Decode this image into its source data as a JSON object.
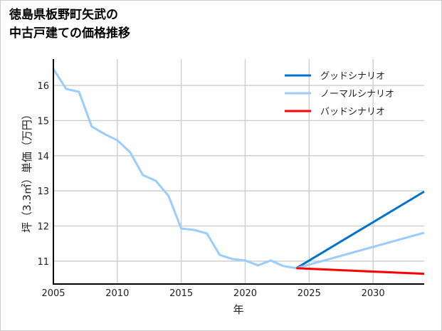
{
  "chart_data": {
    "type": "line",
    "title_lines": [
      "徳島県板野町矢武の",
      "中古戸建ての価格推移"
    ],
    "xlabel": "年",
    "ylabel": "坪（3.3㎡）単価（万円）",
    "xlim": [
      2005,
      2034
    ],
    "ylim": [
      10.35,
      16.75
    ],
    "xticks": [
      2005,
      2010,
      2015,
      2020,
      2025,
      2030
    ],
    "yticks": [
      11,
      12,
      13,
      14,
      15,
      16
    ],
    "grid": true,
    "legend_position": "top-right",
    "historical": {
      "x": [
        2005,
        2006,
        2007,
        2008,
        2009,
        2010,
        2011,
        2012,
        2013,
        2014,
        2015,
        2016,
        2017,
        2018,
        2019,
        2020,
        2021,
        2022,
        2023,
        2024
      ],
      "y": [
        16.47,
        15.9,
        15.82,
        14.83,
        14.62,
        14.44,
        14.1,
        13.45,
        13.29,
        12.86,
        11.93,
        11.89,
        11.79,
        11.18,
        11.06,
        11.02,
        10.88,
        11.02,
        10.86,
        10.8
      ],
      "color": "#99ccff"
    },
    "series": [
      {
        "name": "グッドシナリオ",
        "x": [
          2024,
          2034
        ],
        "y": [
          10.8,
          12.98
        ],
        "color": "#0073cc"
      },
      {
        "name": "ノーマルシナリオ",
        "x": [
          2024,
          2034
        ],
        "y": [
          10.8,
          11.81
        ],
        "color": "#99ccff"
      },
      {
        "name": "バッドシナリオ",
        "x": [
          2024,
          2034
        ],
        "y": [
          10.8,
          10.64
        ],
        "color": "#ff0000"
      }
    ]
  }
}
